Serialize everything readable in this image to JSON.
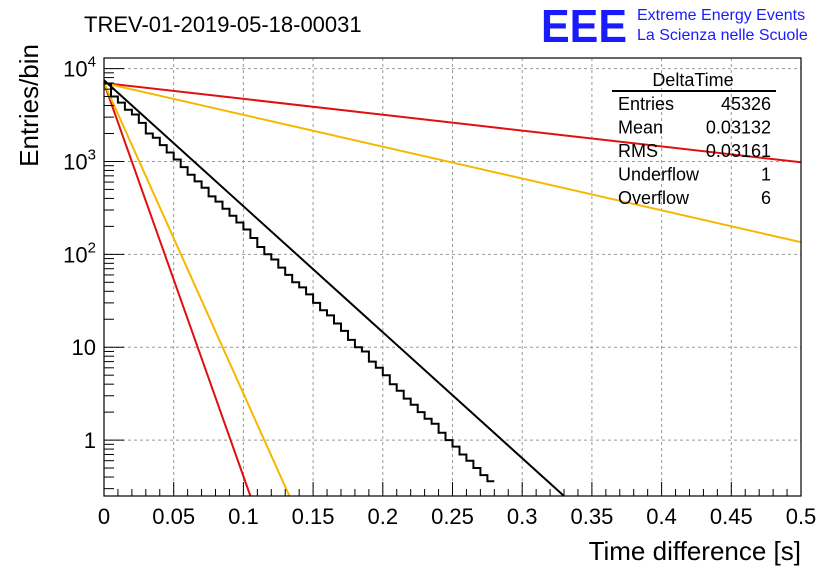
{
  "chart_data": {
    "type": "line",
    "title": "TREV-01-2019-05-18-00031",
    "xlabel": "Time difference [s]",
    "ylabel": "Entries/bin",
    "xlim": [
      0,
      0.5
    ],
    "ylim": [
      0.25,
      13000
    ],
    "yscale": "log",
    "grid": true,
    "x_ticks": [
      0,
      0.05,
      0.1,
      0.15,
      0.2,
      0.25,
      0.3,
      0.35,
      0.4,
      0.45,
      0.5
    ],
    "x_tick_labels": [
      "0",
      "0.05",
      "0.1",
      "0.15",
      "0.2",
      "0.25",
      "0.3",
      "0.35",
      "0.4",
      "0.45",
      "0.5"
    ],
    "y_ticks": [
      1,
      10,
      100,
      1000,
      10000
    ],
    "y_tick_labels": [
      {
        "base": "1",
        "exp": ""
      },
      {
        "base": "10",
        "exp": ""
      },
      {
        "base": "10",
        "exp": "2"
      },
      {
        "base": "10",
        "exp": "3"
      },
      {
        "base": "10",
        "exp": "4"
      }
    ],
    "logo": {
      "mark": "EEE",
      "line1": "Extreme Energy Events",
      "line2": "La Scienza nelle Scuole"
    },
    "stats_box": {
      "title": "DeltaTime",
      "rows": [
        {
          "label": "Entries",
          "value": "45326"
        },
        {
          "label": "Mean",
          "value": "0.03132"
        },
        {
          "label": "RMS",
          "value": "0.03161"
        },
        {
          "label": "Underflow",
          "value": "1"
        },
        {
          "label": "Overflow",
          "value": "6"
        }
      ]
    },
    "histogram": {
      "bin_width": 0.005,
      "counts": [
        6900,
        5000,
        4300,
        3600,
        3200,
        2600,
        2000,
        1800,
        1500,
        1250,
        1050,
        870,
        720,
        610,
        520,
        420,
        370,
        310,
        260,
        220,
        185,
        150,
        120,
        100,
        88,
        72,
        60,
        50,
        44,
        37,
        30,
        25,
        22,
        18,
        15,
        12,
        10,
        9,
        7,
        6,
        5,
        4,
        3.4,
        2.8,
        2.4,
        2.0,
        1.7,
        1.5,
        1.2,
        1.0,
        0.85,
        0.7,
        0.6,
        0.5,
        0.42,
        0.36
      ]
    },
    "series": [
      {
        "x": [
          0,
          0.5
        ],
        "y": [
          7000,
          980
        ],
        "color": "#e01010"
      },
      {
        "x": [
          0,
          0.5
        ],
        "y": [
          7000,
          135
        ],
        "color": "#f5b800"
      },
      {
        "x": [
          0,
          0.105
        ],
        "y": [
          7000,
          0.22
        ],
        "color": "#e01010"
      },
      {
        "x": [
          0,
          0.133
        ],
        "y": [
          7000,
          0.23
        ],
        "color": "#f5b800"
      },
      {
        "x": [
          0,
          0.33
        ],
        "y": [
          7500,
          0.2
        ],
        "color": "#000000"
      }
    ]
  }
}
